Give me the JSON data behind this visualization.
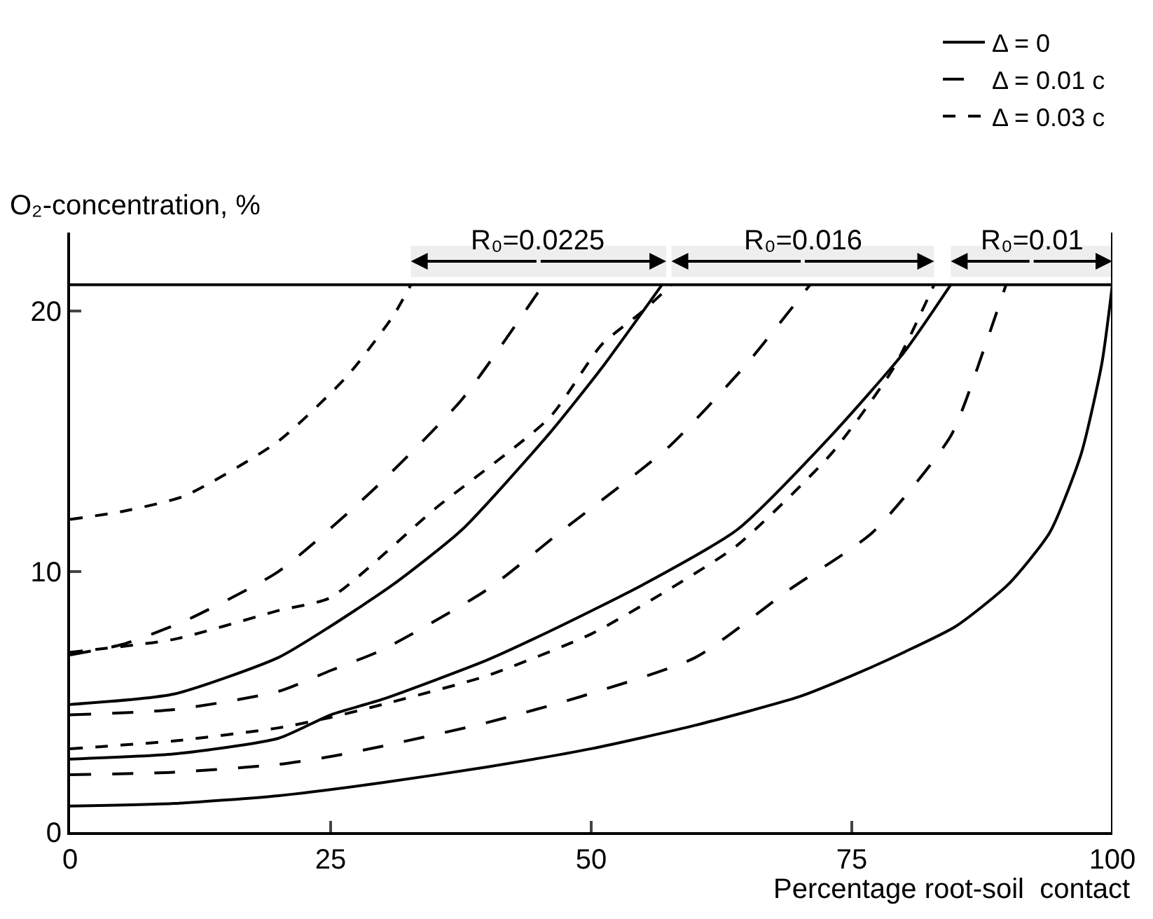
{
  "chart_data": {
    "type": "line",
    "xlabel": "Percentage root-soil  contact",
    "ylabel": "O₂-concentration, %",
    "xlim": [
      0,
      100
    ],
    "ylim": [
      0,
      23
    ],
    "xticks": [
      0,
      25,
      50,
      75,
      100
    ],
    "yticks": [
      0,
      10,
      20
    ],
    "grid": false,
    "legend": "top right",
    "marker": "none",
    "ref_lines": [
      {
        "axis": "y",
        "value": 21
      },
      {
        "axis": "x",
        "value": 100
      }
    ],
    "bands": [
      {
        "axis": "x",
        "from": 32.7,
        "to": 57.2,
        "label": "R₀=0.0225"
      },
      {
        "axis": "x",
        "from": 57.7,
        "to": 82.9,
        "label": "R₀=0.016"
      },
      {
        "axis": "x",
        "from": 84.5,
        "to": 100,
        "label": "R₀=0.01"
      }
    ],
    "series": [
      {
        "name": "Δ = 0",
        "color": "#000000",
        "line_style": "solid",
        "x": [
          0,
          10,
          20,
          30,
          40,
          50,
          60,
          70,
          75,
          80,
          85,
          90,
          94,
          97,
          99,
          100
        ],
        "values": [
          1.0,
          1.1,
          1.4,
          1.9,
          2.5,
          3.2,
          4.1,
          5.2,
          6.0,
          6.9,
          7.9,
          9.5,
          11.5,
          14.5,
          18,
          21
        ]
      },
      {
        "name": "Δ = 0.01 c",
        "color": "#000000",
        "line_style": "dashed",
        "x": [
          0,
          10,
          20,
          25,
          30,
          40,
          49,
          60,
          69,
          77,
          84.5,
          88,
          89.8
        ],
        "values": [
          2.2,
          2.3,
          2.6,
          2.9,
          3.3,
          4.2,
          5.2,
          6.7,
          9.3,
          11.5,
          15.2,
          18.9,
          21
        ]
      },
      {
        "name": "Δ = 0.03 c",
        "color": "#000000",
        "line_style": "dotted",
        "x": [
          0,
          10,
          20,
          25,
          30,
          40,
          50,
          57,
          64,
          73,
          79,
          82.9
        ],
        "values": [
          3.2,
          3.5,
          4.0,
          4.4,
          4.9,
          6.0,
          7.6,
          9.2,
          11.0,
          14.5,
          17.8,
          21
        ]
      },
      {
        "color": "#000000",
        "line_style": "solid",
        "x": [
          0,
          10,
          20,
          25,
          30,
          40,
          46.5,
          55,
          64,
          73,
          80,
          84.5
        ],
        "values": [
          2.8,
          3.0,
          3.6,
          4.5,
          5.1,
          6.6,
          7.8,
          9.5,
          11.6,
          15.2,
          18.4,
          21
        ]
      },
      {
        "color": "#000000",
        "line_style": "dashed",
        "x": [
          0,
          10,
          20,
          25,
          30,
          40,
          47,
          57.5,
          65,
          71
        ],
        "values": [
          4.5,
          4.7,
          5.4,
          6.2,
          7.0,
          9.3,
          11.5,
          14.8,
          18,
          21
        ]
      },
      {
        "color": "#000000",
        "line_style": "dotted",
        "x": [
          0,
          10,
          20,
          25,
          35,
          46,
          51,
          55,
          57.7
        ],
        "values": [
          6.9,
          7.4,
          8.5,
          9.0,
          12.4,
          15.9,
          18.7,
          20,
          21
        ]
      },
      {
        "color": "#000000",
        "line_style": "solid",
        "x": [
          0,
          10,
          20,
          25,
          31,
          37.6,
          46,
          51,
          56.8
        ],
        "values": [
          4.9,
          5.3,
          6.7,
          7.9,
          9.5,
          11.6,
          15.3,
          17.8,
          21
        ]
      },
      {
        "color": "#000000",
        "line_style": "dashed",
        "x": [
          0,
          5,
          11,
          20,
          29,
          37.6,
          45.4
        ],
        "values": [
          6.8,
          7.2,
          8.1,
          10.0,
          13.1,
          16.6,
          21
        ]
      },
      {
        "color": "#000000",
        "line_style": "dotted",
        "x": [
          0,
          5,
          11,
          20,
          26.6,
          31,
          32.7
        ],
        "values": [
          12.0,
          12.3,
          12.9,
          15.0,
          17.5,
          19.8,
          21
        ]
      }
    ]
  }
}
